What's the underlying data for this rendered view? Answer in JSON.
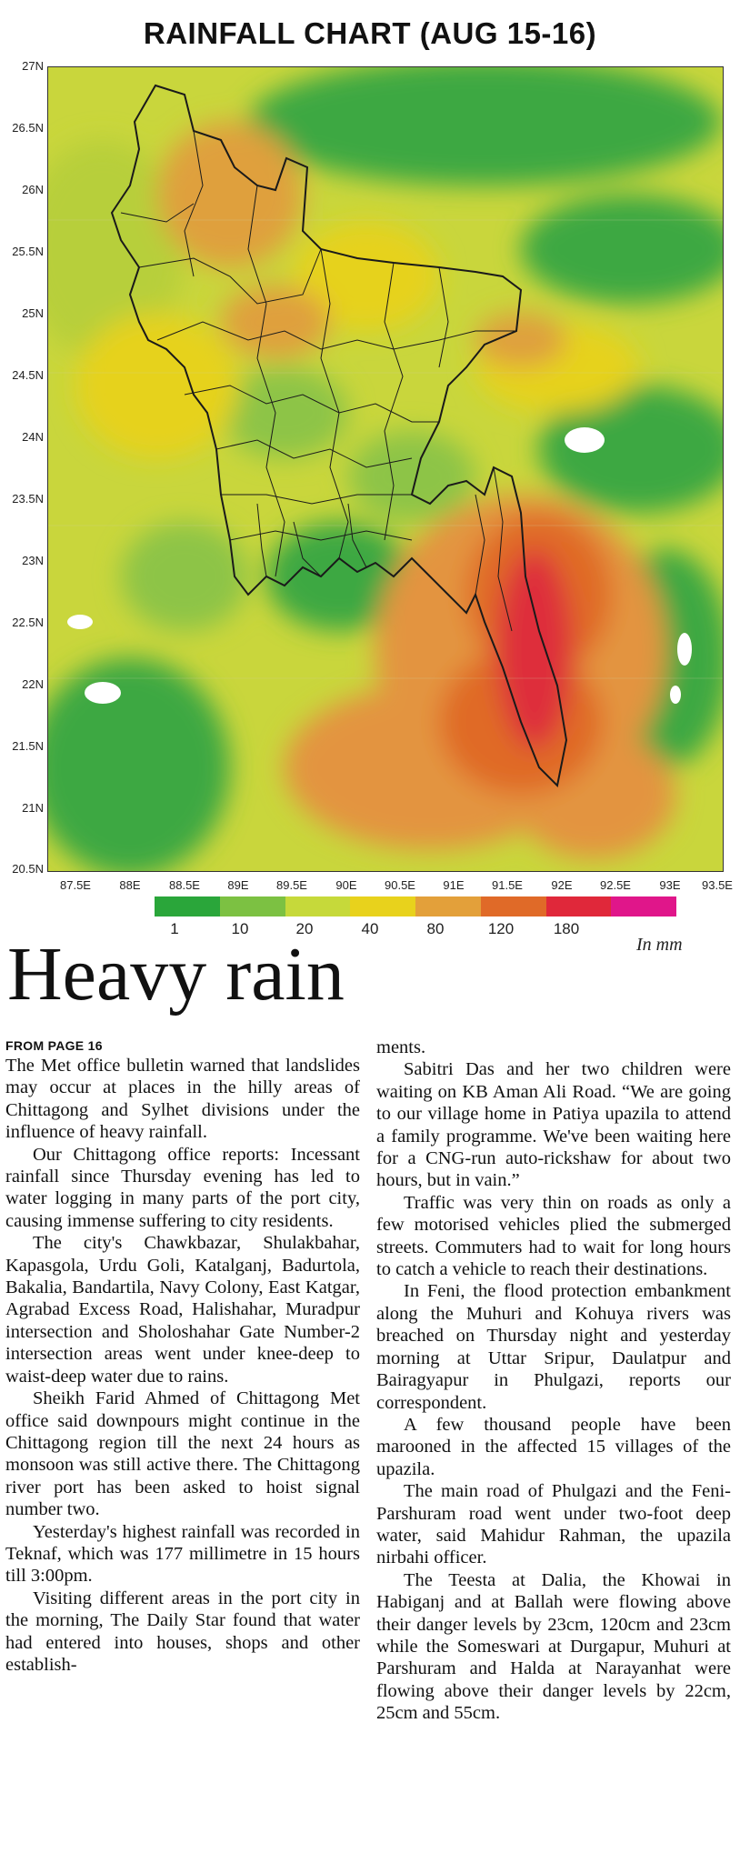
{
  "chart": {
    "title": "RAINFALL CHART (AUG 15-16)",
    "y_ticks": [
      "27N",
      "26.5N",
      "26N",
      "25.5N",
      "25N",
      "24.5N",
      "24N",
      "23.5N",
      "23N",
      "22.5N",
      "22N",
      "21.5N",
      "21N",
      "20.5N"
    ],
    "x_ticks": [
      "87.5E",
      "88E",
      "88.5E",
      "89E",
      "89.5E",
      "90E",
      "90.5E",
      "91E",
      "91.5E",
      "92E",
      "92.5E",
      "93E",
      "93.5E"
    ],
    "legend_labels": [
      "1",
      "10",
      "20",
      "40",
      "80",
      "120",
      "180"
    ],
    "legend_colors": [
      "#2aa63a",
      "#7cc142",
      "#c6d93a",
      "#e8d21c",
      "#e3a03a",
      "#e06a28",
      "#e0283a",
      "#e0168a"
    ],
    "unit": "In mm"
  },
  "article": {
    "headline": "Heavy rain",
    "from_page": "FROM PAGE 16",
    "left_column": [
      "The Met office bulletin warned that landslides may occur at places in the hilly areas of Chittagong and Sylhet divisions under the influence of heavy rainfall.",
      "Our Chittagong office reports: Incessant rainfall since Thursday evening has led to water logging in many parts of the port city, causing immense suffering to city residents.",
      "The city's Chawkbazar, Shulakbahar, Kapasgola, Urdu Goli, Katalganj, Badurtola, Bakalia, Bandartila, Navy Colony, East Katgar, Agrabad Excess Road, Halishahar, Muradpur intersection and Sholoshahar Gate Number-2 intersection areas went under knee-deep to waist-deep water due to rains.",
      "Sheikh Farid Ahmed of Chittagong Met office said downpours might continue in the Chittagong region till the next 24 hours as monsoon was still active there. The Chittagong river port has been asked to hoist signal number two.",
      "Yesterday's highest rainfall was recorded in Teknaf, which was 177 millimetre in 15 hours till 3:00pm.",
      "Visiting different areas in the port city in the morning, The Daily Star found that water had entered into houses, shops and other establish-"
    ],
    "right_column": [
      "ments.",
      "Sabitri Das and her two children were waiting on KB Aman Ali Road. “We are going to our village home in Patiya upazila to attend a family programme. We've been waiting here for a CNG-run auto-rickshaw for about two hours, but in vain.”",
      "Traffic was very thin on roads as only a few motorised vehicles plied the submerged streets. Commuters had to wait for long hours to catch a vehicle to reach their destinations.",
      "In Feni, the flood protection embankment along the Muhuri and Kohuya rivers was breached on Thursday night and yesterday morning at Uttar Sripur, Daulatpur and Bairagyapur in Phulgazi, reports our correspondent.",
      "A few thousand people have been marooned in the affected 15 villages of the upazila.",
      "The main road of Phulgazi and the Feni-Parshuram road went under two-foot deep water, said Mahidur Rahman, the upazila nirbahi officer.",
      "The Teesta at Dalia, the Khowai in Habiganj and at Ballah were flowing above their danger levels by 23cm, 120cm and 23cm while the Someswari at Durgapur, Muhuri at Parshuram and Halda at Narayanhat were flowing above their danger levels by 22cm, 25cm and 55cm."
    ]
  }
}
